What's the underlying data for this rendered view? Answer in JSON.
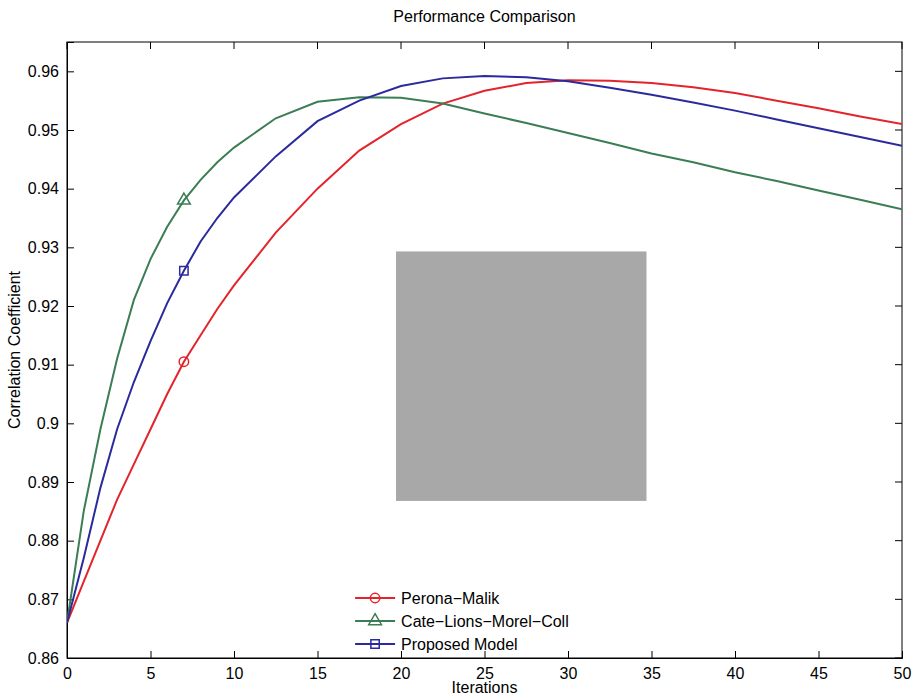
{
  "chart_data": {
    "type": "line",
    "title": "Performance Comparison",
    "x_label": "Iterations",
    "y_label": "Correlation Coefficient",
    "x": [
      0,
      1,
      2,
      3,
      4,
      5,
      6,
      7,
      8,
      9,
      10,
      12.5,
      15,
      17.5,
      20,
      22.5,
      25,
      27.5,
      30,
      32.5,
      35,
      37.5,
      40,
      42.5,
      45,
      47.5,
      50
    ],
    "series": [
      {
        "name": "Perona−Malik",
        "color": "#e3242b",
        "marker": "circle",
        "line_style": "solid",
        "values": [
          0.866,
          0.873,
          0.88,
          0.887,
          0.893,
          0.899,
          0.905,
          0.9105,
          0.915,
          0.9195,
          0.9235,
          0.9325,
          0.94,
          0.9465,
          0.951,
          0.9545,
          0.9567,
          0.958,
          0.9585,
          0.9584,
          0.958,
          0.9573,
          0.9563,
          0.955,
          0.9537,
          0.9523,
          0.951
        ]
      },
      {
        "name": "Cate−Lions−Morel−Coll",
        "color": "#3b7d55",
        "marker": "triangle",
        "line_style": "solid",
        "values": [
          0.866,
          0.885,
          0.899,
          0.911,
          0.921,
          0.928,
          0.9335,
          0.938,
          0.9415,
          0.9445,
          0.947,
          0.952,
          0.9548,
          0.9556,
          0.9555,
          0.9545,
          0.9528,
          0.9512,
          0.9495,
          0.9478,
          0.946,
          0.9445,
          0.9428,
          0.9413,
          0.9397,
          0.9381,
          0.9365
        ]
      },
      {
        "name": "Proposed Model",
        "color": "#2a2a9c",
        "marker": "square",
        "line_style": "solid",
        "values": [
          0.866,
          0.877,
          0.889,
          0.899,
          0.907,
          0.914,
          0.9205,
          0.926,
          0.931,
          0.935,
          0.9385,
          0.9455,
          0.9515,
          0.955,
          0.9575,
          0.9588,
          0.9592,
          0.959,
          0.9583,
          0.9572,
          0.956,
          0.9547,
          0.9533,
          0.9518,
          0.9503,
          0.9488,
          0.9473
        ]
      }
    ],
    "xlim": [
      0,
      50
    ],
    "xticks": [
      0,
      5,
      10,
      15,
      20,
      25,
      30,
      35,
      40,
      45,
      50
    ],
    "ylim": [
      0.86,
      0.965
    ],
    "yticks": [
      0.86,
      0.87,
      0.88,
      0.89,
      0.9,
      0.91,
      0.92,
      0.93,
      0.94,
      0.95,
      0.96
    ],
    "grid": false,
    "legend": "bottom"
  }
}
